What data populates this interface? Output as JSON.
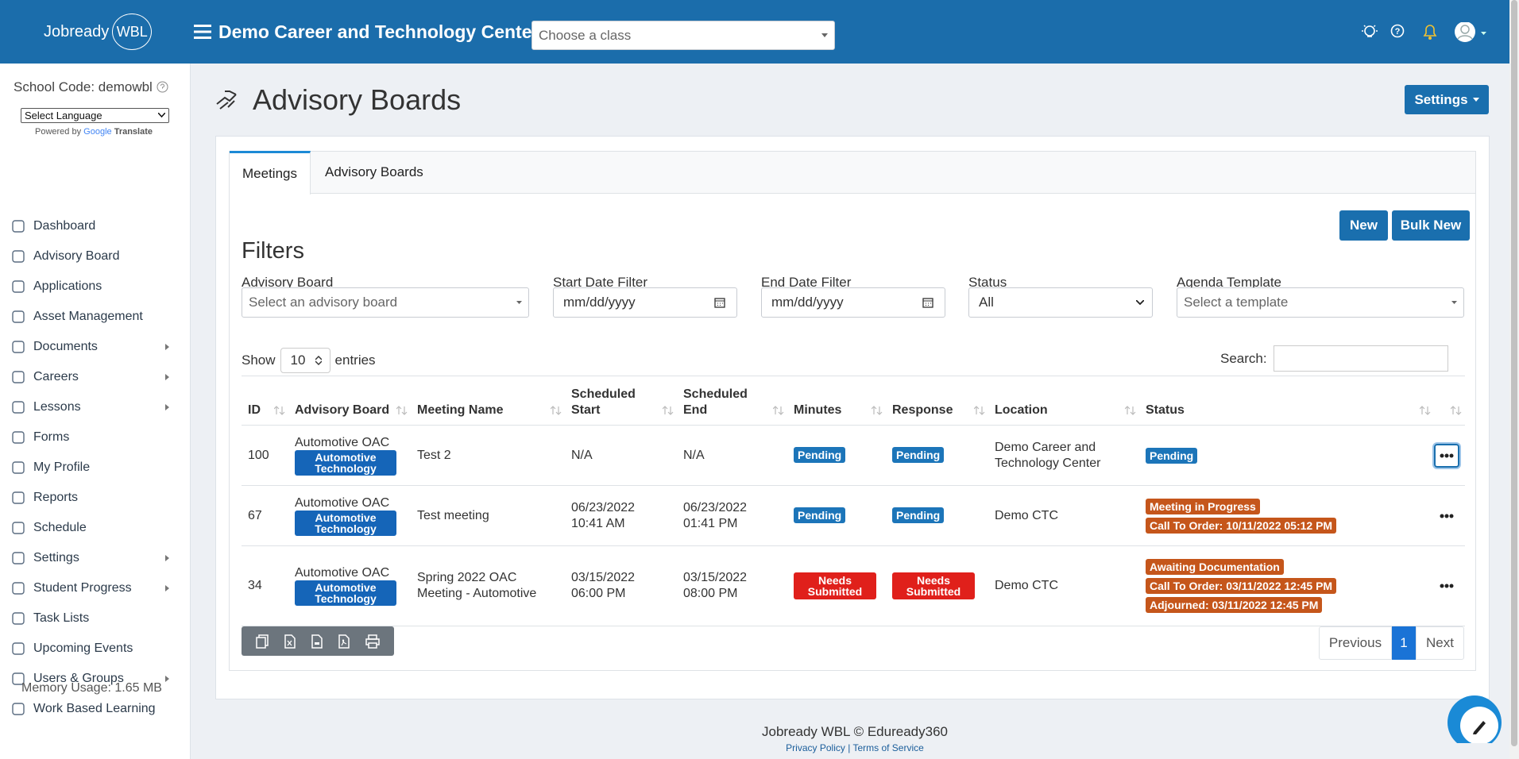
{
  "header": {
    "brand": "Jobready",
    "brand_badge": "WBL",
    "title": "Demo Career and Technology Center",
    "class_placeholder": "Choose a class"
  },
  "sidebar": {
    "school_code": "School Code: demowbl",
    "language": "Select Language",
    "powered_by": "Powered by",
    "google": "Google",
    "translate": "Translate",
    "nav": [
      {
        "label": "Dashboard",
        "submenu": false
      },
      {
        "label": "Advisory Board",
        "submenu": false
      },
      {
        "label": "Applications",
        "submenu": false
      },
      {
        "label": "Asset Management",
        "submenu": false
      },
      {
        "label": "Documents",
        "submenu": true
      },
      {
        "label": "Careers",
        "submenu": true
      },
      {
        "label": "Lessons",
        "submenu": true
      },
      {
        "label": "Forms",
        "submenu": false
      },
      {
        "label": "My Profile",
        "submenu": false
      },
      {
        "label": "Reports",
        "submenu": false
      },
      {
        "label": "Schedule",
        "submenu": false
      },
      {
        "label": "Settings",
        "submenu": true
      },
      {
        "label": "Student Progress",
        "submenu": true
      },
      {
        "label": "Task Lists",
        "submenu": false
      },
      {
        "label": "Upcoming Events",
        "submenu": false
      },
      {
        "label": "Users & Groups",
        "submenu": true
      },
      {
        "label": "Work Based Learning",
        "submenu": false
      }
    ],
    "memory": "Memory Usage: 1.65 MB"
  },
  "page": {
    "title": "Advisory Boards",
    "settings": "Settings"
  },
  "tabs": [
    "Meetings",
    "Advisory Boards"
  ],
  "actions": [
    "New",
    "Bulk New"
  ],
  "filters": {
    "heading": "Filters",
    "fields": [
      {
        "label": "Advisory Board",
        "placeholder": "Select an advisory board",
        "kind": "select"
      },
      {
        "label": "Start Date Filter",
        "placeholder": "mm/dd/yyyy",
        "kind": "date"
      },
      {
        "label": "End Date Filter",
        "placeholder": "mm/dd/yyyy",
        "kind": "date"
      },
      {
        "label": "Status",
        "placeholder": "All",
        "kind": "native"
      },
      {
        "label": "Agenda Template",
        "placeholder": "Select a template",
        "kind": "select"
      }
    ]
  },
  "length": {
    "show": "Show",
    "value": "10",
    "entries": "entries"
  },
  "search": "Search:",
  "table": {
    "columns": [
      "ID",
      "Advisory Board",
      "Meeting Name",
      "Scheduled Start",
      "Scheduled End",
      "Minutes",
      "Response",
      "Location",
      "Status"
    ],
    "rows": [
      {
        "id": 100,
        "board": "Automotive OAC",
        "tag": "Automotive Technology",
        "meeting": "Test 2",
        "start": [
          "N/A"
        ],
        "end": [
          "N/A"
        ],
        "minutes": {
          "text": "Pending",
          "color": "#1c75b9"
        },
        "response": {
          "text": "Pending",
          "color": "#1c75b9"
        },
        "location": "Demo Career and Technology Center",
        "status": [
          {
            "text": "Pending",
            "color": "#1c75b9"
          }
        ]
      },
      {
        "id": 67,
        "board": "Automotive OAC",
        "tag": "Automotive Technology",
        "meeting": "Test meeting",
        "start": [
          "06/23/2022",
          "10:41 AM"
        ],
        "end": [
          "06/23/2022",
          "01:41 PM"
        ],
        "minutes": {
          "text": "Pending",
          "color": "#1c75b9"
        },
        "response": {
          "text": "Pending",
          "color": "#1c75b9"
        },
        "location": "Demo CTC",
        "status": [
          {
            "text": "Meeting in Progress",
            "color": "#c5561b"
          },
          {
            "text": "Call To Order: 10/11/2022 05:12 PM",
            "color": "#c5561b"
          }
        ]
      },
      {
        "id": 34,
        "board": "Automotive OAC",
        "tag": "Automotive Technology",
        "meeting": "Spring 2022 OAC Meeting - Automotive",
        "start": [
          "03/15/2022",
          "06:00 PM"
        ],
        "end": [
          "03/15/2022",
          "08:00 PM"
        ],
        "minutes": {
          "text": "Needs Submitted",
          "color": "#e0201b"
        },
        "response": {
          "text": "Needs Submitted",
          "color": "#e0201b"
        },
        "location": "Demo CTC",
        "status": [
          {
            "text": "Awaiting Documentation",
            "color": "#c5561b"
          },
          {
            "text": "Call To Order: 03/11/2022 12:45 PM",
            "color": "#c5561b"
          },
          {
            "text": "Adjourned: 03/11/2022 12:45 PM",
            "color": "#c5561b"
          }
        ]
      }
    ]
  },
  "pagination": [
    "Previous",
    "1",
    "Next"
  ],
  "footer": {
    "copyright": "Jobready WBL © Eduready360",
    "privacy": "Privacy Policy",
    "separator": "|",
    "terms": "Terms of Service"
  }
}
